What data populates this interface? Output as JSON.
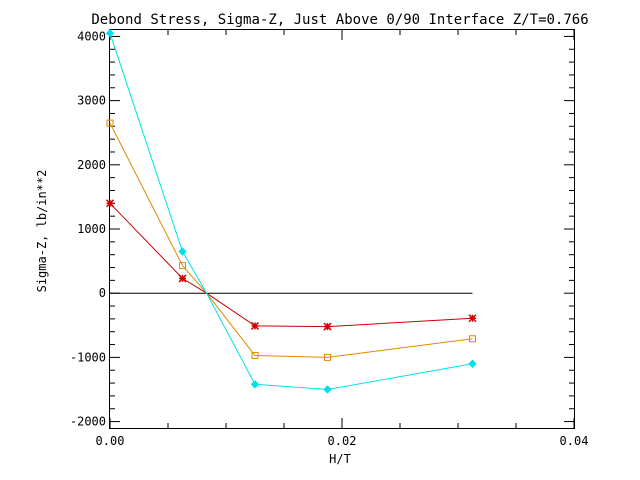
{
  "chart_data": {
    "type": "line",
    "title": "Debond Stress, Sigma-Z, Just Above 0/90 Interface Z/T=0.766",
    "xlabel": "H/T",
    "ylabel": "Sigma-Z,  lb/in**2",
    "xlim": [
      0.0,
      0.04
    ],
    "ylim": [
      -2100,
      4100
    ],
    "x_ticks": [
      0.0,
      0.02,
      0.04
    ],
    "x_tick_labels": [
      "0.00",
      "0.02",
      "0.04"
    ],
    "y_ticks": [
      -2000,
      -1000,
      0,
      1000,
      2000,
      3000,
      4000
    ],
    "y_tick_labels": [
      "-2000",
      "-1000",
      "0",
      "1000",
      "2000",
      "3000",
      "4000"
    ],
    "grid": false,
    "legend": "none",
    "zero_line": {
      "x_start": 0.0,
      "x_end": 0.03125,
      "y": 0,
      "color": "#000000"
    },
    "series": [
      {
        "marker": "asterisk",
        "color": "#cc0000",
        "x": [
          0.0,
          0.00625,
          0.00833,
          0.0125,
          0.01875,
          0.03125
        ],
        "y": [
          1400,
          230,
          0,
          -510,
          -520,
          -390
        ],
        "marker_mask": [
          true,
          true,
          false,
          true,
          true,
          true
        ]
      },
      {
        "marker": "square",
        "color": "#e08a00",
        "x": [
          0.0,
          0.00625,
          0.00833,
          0.0125,
          0.01875,
          0.03125
        ],
        "y": [
          2650,
          430,
          0,
          -970,
          -1000,
          -710
        ],
        "marker_mask": [
          true,
          true,
          false,
          true,
          true,
          true
        ]
      },
      {
        "marker": "diamond",
        "color": "#00e0e8",
        "x": [
          0.0,
          0.00625,
          0.00833,
          0.0125,
          0.01875,
          0.03125
        ],
        "y": [
          4050,
          650,
          0,
          -1420,
          -1500,
          -1100
        ],
        "marker_mask": [
          true,
          true,
          false,
          true,
          true,
          true
        ]
      }
    ]
  }
}
